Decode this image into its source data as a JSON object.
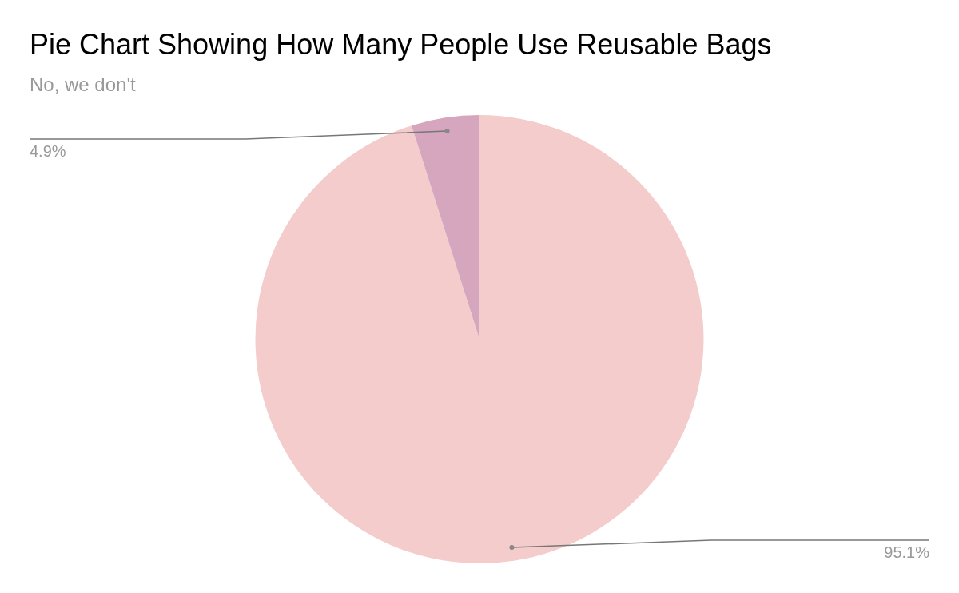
{
  "chart_data": {
    "type": "pie",
    "title": "Pie Chart Showing How Many People Use Reusable Bags",
    "subtitle": "No, we don't",
    "categories": [
      null,
      null
    ],
    "values": [
      95.1,
      4.9
    ],
    "colors": [
      "#f4cccc",
      "#d5a6bd"
    ],
    "value_labels": [
      "95.1%",
      "4.9%"
    ],
    "legend": false
  }
}
